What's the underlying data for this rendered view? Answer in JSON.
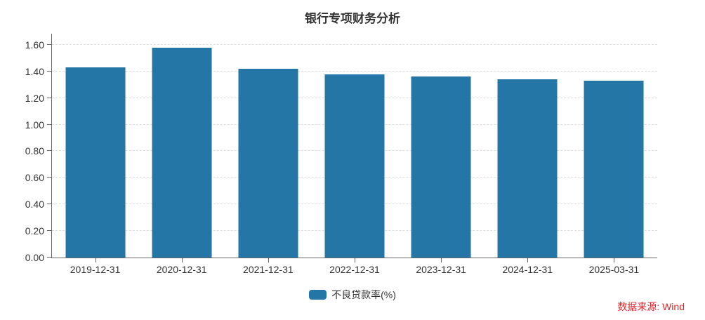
{
  "title": "银行专项财务分析",
  "colors": {
    "bar": "#2476a7",
    "axis": "#666666",
    "grid": "#dddddd",
    "text": "#333333",
    "source": "#e2262c"
  },
  "chart_data": {
    "type": "bar",
    "title": "银行专项财务分析",
    "categories": [
      "2019-12-31",
      "2020-12-31",
      "2021-12-31",
      "2022-12-31",
      "2023-12-31",
      "2024-12-31",
      "2025-03-31"
    ],
    "series": [
      {
        "name": "不良贷款率(%)",
        "values": [
          1.43,
          1.58,
          1.42,
          1.38,
          1.36,
          1.34,
          1.33
        ]
      }
    ],
    "xlabel": "",
    "ylabel": "",
    "ylim": [
      0,
      1.684
    ],
    "yticks": [
      {
        "value": 0.0,
        "label": "0.00"
      },
      {
        "value": 0.2,
        "label": "0.20"
      },
      {
        "value": 0.4,
        "label": "0.40"
      },
      {
        "value": 0.6,
        "label": "0.60"
      },
      {
        "value": 0.8,
        "label": "0.80"
      },
      {
        "value": 1.0,
        "label": "1.00"
      },
      {
        "value": 1.2,
        "label": "1.20"
      },
      {
        "value": 1.4,
        "label": "1.40"
      },
      {
        "value": 1.6,
        "label": "1.60"
      }
    ],
    "grid": true,
    "grid_style": "dashed",
    "legend_position": "bottom"
  },
  "legend": {
    "label": "不良贷款率(%)"
  },
  "source": {
    "label": "数据来源: Wind"
  }
}
